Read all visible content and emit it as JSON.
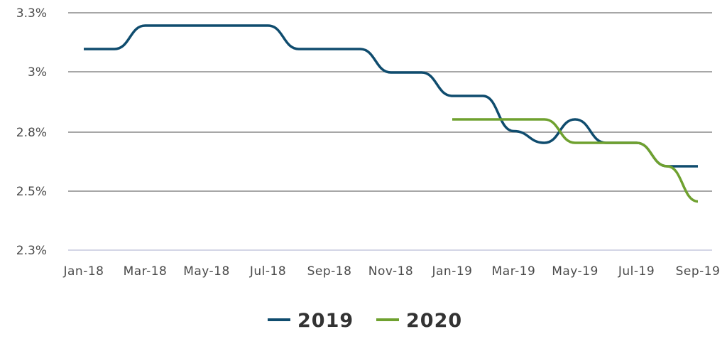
{
  "chart_data": {
    "type": "line",
    "title": "",
    "xlabel": "",
    "ylabel": "",
    "y_tick_labels": [
      "3.3%",
      "3%",
      "2.8%",
      "2.5%",
      "2.3%"
    ],
    "x_tick_labels": [
      "Jan-18",
      "Mar-18",
      "May-18",
      "Jul-18",
      "Sep-18",
      "Nov-18",
      "Jan-19",
      "Mar-19",
      "May-19",
      "Jul-19",
      "Sep-19"
    ],
    "ylim": [
      2.25,
      3.25
    ],
    "categories": [
      "Jan-18",
      "Feb-18",
      "Mar-18",
      "Apr-18",
      "May-18",
      "Jun-18",
      "Jul-18",
      "Aug-18",
      "Sep-18",
      "Oct-18",
      "Nov-18",
      "Dec-18",
      "Jan-19",
      "Feb-19",
      "Mar-19",
      "Apr-19",
      "May-19",
      "Jun-19",
      "Jul-19",
      "Aug-19",
      "Sep-19"
    ],
    "grid": true,
    "legend_position": "bottom",
    "series": [
      {
        "name": "2019",
        "color": "#0f4c6e",
        "values": [
          3.15,
          3.15,
          3.25,
          3.25,
          3.25,
          3.25,
          3.25,
          3.15,
          3.15,
          3.15,
          3.05,
          3.05,
          2.95,
          2.95,
          2.8,
          2.75,
          2.85,
          2.75,
          2.75,
          2.65,
          2.65
        ]
      },
      {
        "name": "2020",
        "color": "#6fa12f",
        "values": [
          null,
          null,
          null,
          null,
          null,
          null,
          null,
          null,
          null,
          null,
          null,
          null,
          2.85,
          2.85,
          2.85,
          2.85,
          2.75,
          2.75,
          2.75,
          2.65,
          2.5
        ]
      }
    ]
  }
}
